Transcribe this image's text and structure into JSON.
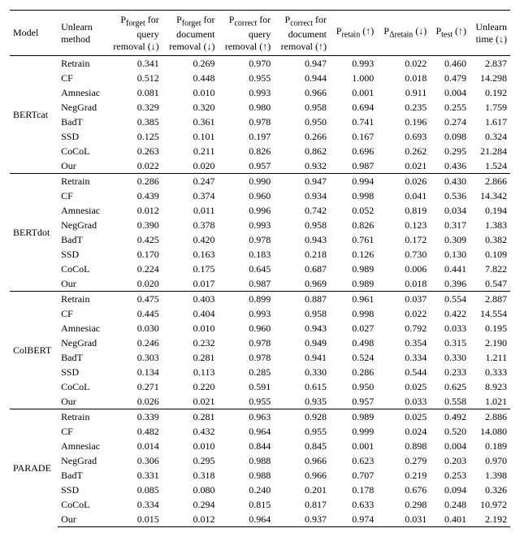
{
  "columns": {
    "model": "Model",
    "method": "Unlearn\nmethod",
    "c1": "P<sub>forget</sub> for\nquery\nremoval (↓)",
    "c2": "P<sub>forget</sub> for\ndocument\nremoval (↓)",
    "c3": "P<sub>correct</sub> for\nquery\nremoval (↑)",
    "c4": "P<sub>correct</sub> for\ndocument\nremoval (↑)",
    "c5": "P<sub>retain</sub> (↑)",
    "c6": "P<sub>Δretain</sub> (↓)",
    "c7": "P<sub>test</sub> (↑)",
    "c8": "Unlearn\ntime (↓)"
  },
  "groups": [
    {
      "model": "BERTcat",
      "rows": [
        {
          "method": "Retrain",
          "v": [
            "0.341",
            "0.269",
            "0.970",
            "0.947",
            "0.993",
            "0.022",
            "0.460",
            "2.837"
          ]
        },
        {
          "method": "CF",
          "v": [
            "0.512",
            "0.448",
            "0.955",
            "0.944",
            "1.000",
            "0.018",
            "0.479",
            "14.298"
          ]
        },
        {
          "method": "Amnesiac",
          "v": [
            "0.081",
            "0.010",
            "0.993",
            "0.966",
            "0.001",
            "0.911",
            "0.004",
            "0.192"
          ]
        },
        {
          "method": "NegGrad",
          "v": [
            "0.329",
            "0.320",
            "0.980",
            "0.958",
            "0.694",
            "0.235",
            "0.255",
            "1.759"
          ]
        },
        {
          "method": "BadT",
          "v": [
            "0.385",
            "0.361",
            "0.978",
            "0.950",
            "0.741",
            "0.196",
            "0.274",
            "1.617"
          ]
        },
        {
          "method": "SSD",
          "v": [
            "0.125",
            "0.101",
            "0.197",
            "0.266",
            "0.167",
            "0.693",
            "0.098",
            "0.324"
          ]
        },
        {
          "method": "CoCoL",
          "v": [
            "0.263",
            "0.211",
            "0.826",
            "0.862",
            "0.696",
            "0.262",
            "0.295",
            "21.284"
          ]
        },
        {
          "method": "Our",
          "v": [
            "0.022",
            "0.020",
            "0.957",
            "0.932",
            "0.987",
            "0.021",
            "0.436",
            "1.524"
          ]
        }
      ]
    },
    {
      "model": "BERTdot",
      "rows": [
        {
          "method": "Retrain",
          "v": [
            "0.286",
            "0.247",
            "0.990",
            "0.947",
            "0.994",
            "0.026",
            "0.430",
            "2.866"
          ]
        },
        {
          "method": "CF",
          "v": [
            "0.439",
            "0.374",
            "0.960",
            "0.934",
            "0.998",
            "0.041",
            "0.536",
            "14.342"
          ]
        },
        {
          "method": "Amnesiac",
          "v": [
            "0.012",
            "0.011",
            "0.996",
            "0.742",
            "0.052",
            "0.819",
            "0.034",
            "0.194"
          ]
        },
        {
          "method": "NegGrad",
          "v": [
            "0.390",
            "0.378",
            "0.993",
            "0.958",
            "0.826",
            "0.123",
            "0.317",
            "1.383"
          ]
        },
        {
          "method": "BadT",
          "v": [
            "0.425",
            "0.420",
            "0.978",
            "0.943",
            "0.761",
            "0.172",
            "0.309",
            "0.382"
          ]
        },
        {
          "method": "SSD",
          "v": [
            "0.170",
            "0.163",
            "0.183",
            "0.218",
            "0.126",
            "0.730",
            "0.130",
            "0.109"
          ]
        },
        {
          "method": "CoCoL",
          "v": [
            "0.224",
            "0.175",
            "0.645",
            "0.687",
            "0.989",
            "0.006",
            "0.441",
            "7.822"
          ]
        },
        {
          "method": "Our",
          "v": [
            "0.020",
            "0.017",
            "0.987",
            "0.969",
            "0.989",
            "0.018",
            "0.396",
            "0.547"
          ]
        }
      ]
    },
    {
      "model": "ColBERT",
      "rows": [
        {
          "method": "Retrain",
          "v": [
            "0.475",
            "0.403",
            "0.899",
            "0.887",
            "0.961",
            "0.037",
            "0.554",
            "2.887"
          ]
        },
        {
          "method": "CF",
          "v": [
            "0.445",
            "0.404",
            "0.993",
            "0.958",
            "0.998",
            "0.022",
            "0.422",
            "14.554"
          ]
        },
        {
          "method": "Amnesiac",
          "v": [
            "0.030",
            "0.010",
            "0.960",
            "0.943",
            "0.027",
            "0.792",
            "0.033",
            "0.195"
          ]
        },
        {
          "method": "NegGrad",
          "v": [
            "0.246",
            "0.232",
            "0.978",
            "0.949",
            "0.498",
            "0.354",
            "0.315",
            "2.190"
          ]
        },
        {
          "method": "BadT",
          "v": [
            "0.303",
            "0.281",
            "0.978",
            "0.941",
            "0.524",
            "0.334",
            "0.330",
            "1.211"
          ]
        },
        {
          "method": "SSD",
          "v": [
            "0.134",
            "0.113",
            "0.285",
            "0.330",
            "0.286",
            "0.544",
            "0.233",
            "0.333"
          ]
        },
        {
          "method": "CoCoL",
          "v": [
            "0.271",
            "0.220",
            "0.591",
            "0.615",
            "0.950",
            "0.025",
            "0.625",
            "8.923"
          ]
        },
        {
          "method": "Our",
          "v": [
            "0.026",
            "0.021",
            "0.955",
            "0.935",
            "0.957",
            "0.033",
            "0.558",
            "1.021"
          ]
        }
      ]
    },
    {
      "model": "PARADE",
      "rows": [
        {
          "method": "Retrain",
          "v": [
            "0.339",
            "0.281",
            "0.963",
            "0.928",
            "0.989",
            "0.025",
            "0.492",
            "2.886"
          ]
        },
        {
          "method": "CF",
          "v": [
            "0.482",
            "0.432",
            "0.964",
            "0.955",
            "0.999",
            "0.024",
            "0.520",
            "14.080"
          ]
        },
        {
          "method": "Amnesiac",
          "v": [
            "0.014",
            "0.010",
            "0.844",
            "0.845",
            "0.001",
            "0.898",
            "0.004",
            "0.189"
          ]
        },
        {
          "method": "NegGrad",
          "v": [
            "0.306",
            "0.295",
            "0.988",
            "0.966",
            "0.623",
            "0.279",
            "0.203",
            "0.970"
          ]
        },
        {
          "method": "BadT",
          "v": [
            "0.331",
            "0.318",
            "0.988",
            "0.966",
            "0.707",
            "0.219",
            "0.253",
            "1.398"
          ]
        },
        {
          "method": "SSD",
          "v": [
            "0.085",
            "0.080",
            "0.240",
            "0.201",
            "0.178",
            "0.676",
            "0.094",
            "0.326"
          ]
        },
        {
          "method": "CoCoL",
          "v": [
            "0.334",
            "0.294",
            "0.815",
            "0.817",
            "0.633",
            "0.298",
            "0.248",
            "10.972"
          ]
        },
        {
          "method": "Our",
          "v": [
            "0.015",
            "0.012",
            "0.964",
            "0.937",
            "0.974",
            "0.031",
            "0.401",
            "2.192"
          ]
        }
      ]
    }
  ]
}
